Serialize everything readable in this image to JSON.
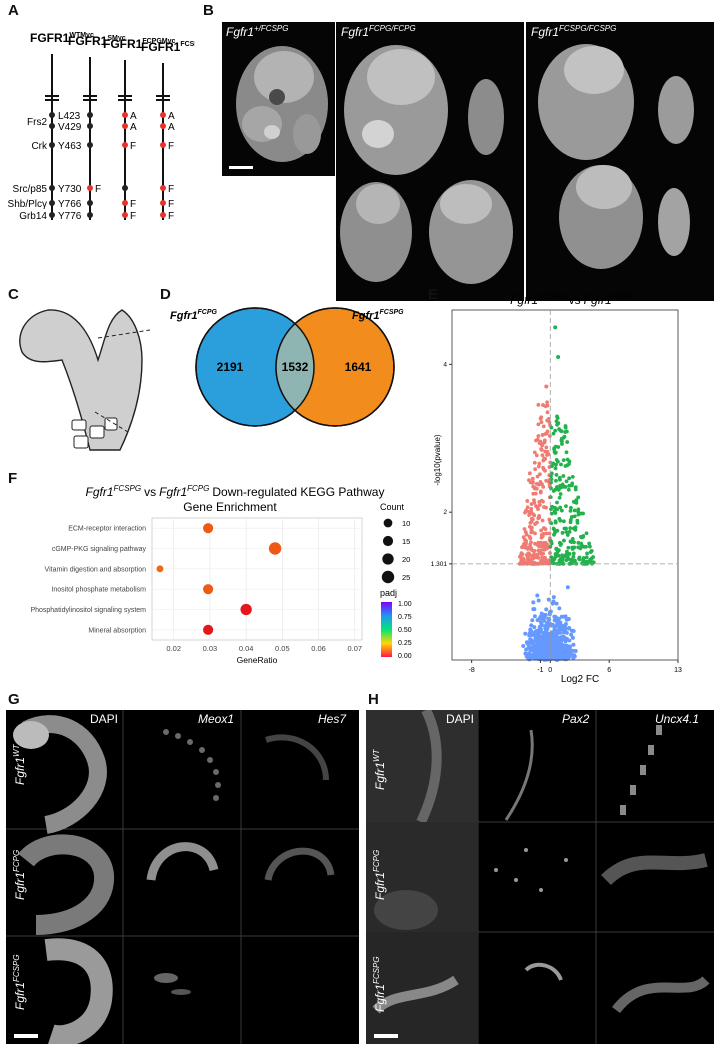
{
  "panels": {
    "A": {
      "letter": "A",
      "constructs": [
        {
          "base": "FGFR1",
          "sup": "WTMyc"
        },
        {
          "base": "FGFR1",
          "sup": "SMyc"
        },
        {
          "base": "FGFR1",
          "sup": "FCPGMyc"
        },
        {
          "base": "FGFR1",
          "sup": "FCSPGMyc"
        }
      ],
      "site_labels": [
        "Frs2",
        "Crk",
        "Src/p85",
        "Shb/Plcγ",
        "Grb14"
      ],
      "residues": [
        "L423",
        "V429",
        "Y463",
        "Y730",
        "Y766",
        "Y776"
      ],
      "mutation_letters": {
        "S": [
          "F"
        ],
        "FCPG": [
          "A",
          "A",
          "F",
          "F",
          "F"
        ],
        "FCSPG": [
          "A",
          "A",
          "F",
          "F",
          "F",
          "F"
        ]
      },
      "colors": {
        "mutant": "#e8312a",
        "wildtype": "#222222"
      }
    },
    "B": {
      "letter": "B",
      "labels": [
        {
          "base": "Fgfr1",
          "sup": "+/FCSPG"
        },
        {
          "base": "Fgfr1",
          "sup": "FCPG/FCPG"
        },
        {
          "base": "Fgfr1",
          "sup": "FCSPG/FCSPG"
        }
      ]
    },
    "C": {
      "letter": "C"
    },
    "D": {
      "letter": "D",
      "left_label": {
        "base": "Fgfr1",
        "sup": "FCPG"
      },
      "right_label": {
        "base": "Fgfr1",
        "sup": "FCSPG"
      },
      "left_only": "2191",
      "overlap": "1532",
      "right_only": "1641",
      "colors": {
        "left": "#2b9fdc",
        "right": "#f28c1c",
        "overlap": "#8fb5b2"
      }
    },
    "E": {
      "letter": "E",
      "title_a": "Fgfr1",
      "sup_a": "FCSPG",
      "title_mid": "vs",
      "title_b": "Fgfr1",
      "sup_b": "FCPG",
      "xlabel": "Log2 FC",
      "ylabel": "-log10(pvalue)",
      "threshold_label": "1.301",
      "colors": {
        "down": "#f07b72",
        "up": "#22b14c",
        "ns": "#6699ff"
      }
    },
    "F": {
      "letter": "F",
      "title_a": "Fgfr1",
      "sup_a": "FCSPG",
      "title_mid": "vs",
      "title_b": "Fgfr1",
      "sup_b": "FCPG",
      "title_rest": "Down-regulated KEGG Pathway",
      "title_line2": "Gene Enrichment",
      "legend_count_title": "Count",
      "legend_padj_title": "padj"
    },
    "G": {
      "letter": "G",
      "columns": [
        "DAPI",
        "Meox1",
        "Hes7"
      ],
      "rows": [
        {
          "base": "Fgfr1",
          "sup": "WT"
        },
        {
          "base": "Fgfr1",
          "sup": "FCPG"
        },
        {
          "base": "Fgfr1",
          "sup": "FCSPG"
        }
      ]
    },
    "H": {
      "letter": "H",
      "columns": [
        "DAPI",
        "Pax2",
        "Uncx4.1"
      ],
      "rows": [
        {
          "base": "Fgfr1",
          "sup": "WT"
        },
        {
          "base": "Fgfr1",
          "sup": "FCPG"
        },
        {
          "base": "Fgfr1",
          "sup": "FCSPG"
        }
      ]
    }
  },
  "chart_data": [
    {
      "type": "scatter",
      "name": "volcano",
      "xlabel": "Log2 FC",
      "ylabel": "-log10(pvalue)",
      "xticks": [
        -8,
        -1,
        0,
        6,
        13
      ],
      "yticks": [
        1.301,
        2,
        4
      ],
      "xlim": [
        -10,
        13
      ],
      "ylim": [
        0,
        4.6
      ],
      "thresholds": {
        "x": 0,
        "y": 1.301
      },
      "groups": [
        "down",
        "up",
        "ns"
      ]
    },
    {
      "type": "scatter",
      "name": "kegg_dotplot",
      "xlabel": "GeneRatio",
      "categories": [
        "ECM-receptor interaction",
        "cGMP-PKG signaling pathway",
        "Vitamin digestion and absorption",
        "Inositol phosphate metabolism",
        "Phosphatidylinositol signaling system",
        "Mineral absorption"
      ],
      "gene_ratio": [
        0.0295,
        0.048,
        0.0162,
        0.0295,
        0.04,
        0.0295
      ],
      "count": [
        15,
        25,
        5,
        15,
        20,
        15
      ],
      "padj": [
        0.55,
        0.6,
        0.7,
        0.5,
        0.05,
        0.08
      ],
      "xticks": [
        "0.02",
        "0.03",
        "0.04",
        "0.05",
        "0.06",
        "0.07"
      ],
      "xlim": [
        0.014,
        0.072
      ],
      "count_legend": [
        "10",
        "15",
        "20",
        "25"
      ],
      "padj_legend": [
        "1.00",
        "0.75",
        "0.50",
        "0.25",
        "0.00"
      ]
    }
  ]
}
